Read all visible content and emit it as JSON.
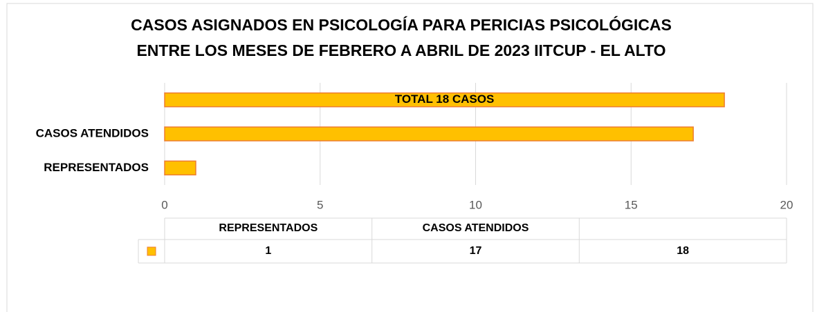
{
  "chart_data": {
    "type": "bar",
    "orientation": "horizontal",
    "title": [
      "CASOS ASIGNADOS EN PSICOLOGÍA PARA PERICIAS PSICOLÓGICAS",
      "ENTRE LOS MESES DE FEBRERO A ABRIL DE 2023 IITCUP - EL ALTO"
    ],
    "categories": [
      "REPRESENTADOS",
      "CASOS ATENDIDOS",
      null
    ],
    "values": [
      1,
      17,
      18
    ],
    "annotation": "TOTAL 18 CASOS",
    "color": "#ffc000",
    "edge_color": "#ed7d31",
    "xlim": [
      0,
      20
    ],
    "xticks": [
      0,
      5,
      10,
      15,
      20
    ],
    "grid": true,
    "data_table": true
  }
}
